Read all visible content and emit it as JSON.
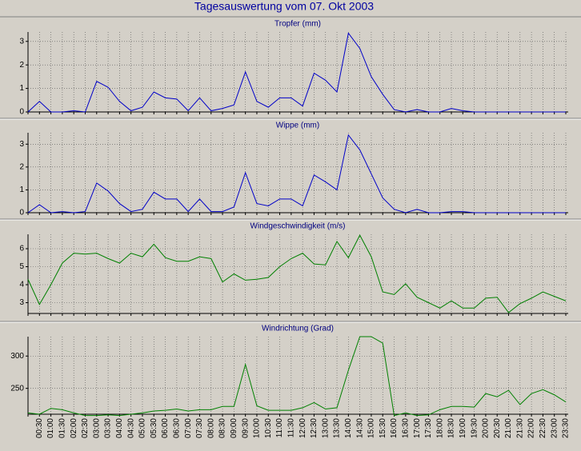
{
  "title": "Tagesauswertung vom 07. Okt 2003",
  "chart_data": [
    {
      "type": "line",
      "title": "Tropfer (mm)",
      "color": "#0000c8",
      "ylim": [
        0,
        3.4
      ],
      "yticks": [
        0,
        1,
        2,
        3
      ],
      "grid": true,
      "values": [
        0,
        0.45,
        0,
        0,
        0.05,
        0,
        1.3,
        1.05,
        0.45,
        0.05,
        0.2,
        0.85,
        0.6,
        0.55,
        0.05,
        0.6,
        0.05,
        0.15,
        0.3,
        1.7,
        0.45,
        0.2,
        0.6,
        0.6,
        0.25,
        1.65,
        1.35,
        0.85,
        3.35,
        2.7,
        1.5,
        0.75,
        0.1,
        0,
        0.1,
        0,
        0,
        0.15,
        0.05,
        0,
        0,
        0,
        0,
        0,
        0,
        0,
        0,
        0
      ]
    },
    {
      "type": "line",
      "title": "Wippe (mm)",
      "color": "#0000c8",
      "ylim": [
        0,
        3.5
      ],
      "yticks": [
        0,
        1,
        2,
        3
      ],
      "grid": true,
      "values": [
        0,
        0.35,
        0,
        0.05,
        0,
        0.05,
        1.3,
        0.95,
        0.4,
        0.05,
        0.15,
        0.9,
        0.6,
        0.6,
        0.05,
        0.6,
        0.05,
        0.05,
        0.25,
        1.75,
        0.4,
        0.3,
        0.6,
        0.6,
        0.3,
        1.65,
        1.35,
        1.0,
        3.4,
        2.75,
        1.7,
        0.65,
        0.15,
        0,
        0.15,
        0,
        0,
        0.05,
        0.05,
        0,
        0,
        0,
        0,
        0,
        0,
        0,
        0,
        0
      ]
    },
    {
      "type": "line",
      "title": "Windgeschwindigkeit (m/s)",
      "color": "#008000",
      "ylim": [
        2.4,
        6.8
      ],
      "yticks": [
        3,
        4,
        5,
        6
      ],
      "grid": true,
      "values": [
        4.3,
        2.9,
        4.0,
        5.2,
        5.75,
        5.7,
        5.75,
        5.45,
        5.2,
        5.75,
        5.55,
        6.25,
        5.5,
        5.3,
        5.3,
        5.55,
        5.45,
        4.15,
        4.6,
        4.25,
        4.3,
        4.4,
        5.0,
        5.45,
        5.75,
        5.15,
        5.1,
        6.4,
        5.5,
        6.75,
        5.55,
        3.6,
        3.45,
        4.05,
        3.3,
        3.0,
        2.7,
        3.1,
        2.7,
        2.7,
        3.25,
        3.3,
        2.45,
        2.95,
        3.25,
        3.6,
        3.35,
        3.1
      ]
    },
    {
      "type": "line",
      "title": "Windrichtung (Grad)",
      "color": "#008000",
      "ylim": [
        210,
        330
      ],
      "yticks": [
        250,
        300
      ],
      "grid": true,
      "categories": [
        null,
        "00:30",
        "01:00",
        "01:30",
        "02:00",
        "02:30",
        "03:00",
        "03:30",
        "04:00",
        "04:30",
        "05:00",
        "05:30",
        "06:00",
        "06:30",
        "07:00",
        "07:30",
        "08:00",
        "08:30",
        "09:00",
        "09:30",
        "10:00",
        "10:30",
        "11:00",
        "11:30",
        "12:00",
        "12:30",
        "13:00",
        "13:30",
        "14:00",
        "14:30",
        "15:00",
        "15:30",
        "16:00",
        "16:30",
        "17:00",
        "17:30",
        "18:00",
        "18:30",
        "19:00",
        "19:30",
        "20:00",
        "20:30",
        "21:00",
        "21:30",
        "22:00",
        "22:30",
        "23:00",
        "23:30"
      ],
      "values": [
        212,
        210,
        219,
        217,
        212,
        208,
        208,
        209,
        208,
        210,
        212,
        215,
        216,
        218,
        215,
        217,
        217,
        222,
        222,
        287,
        223,
        216,
        216,
        216,
        220,
        228,
        218,
        220,
        278,
        330,
        330,
        320,
        208,
        212,
        208,
        209,
        217,
        222,
        222,
        221,
        242,
        237,
        247,
        225,
        242,
        248,
        240,
        229
      ]
    }
  ]
}
